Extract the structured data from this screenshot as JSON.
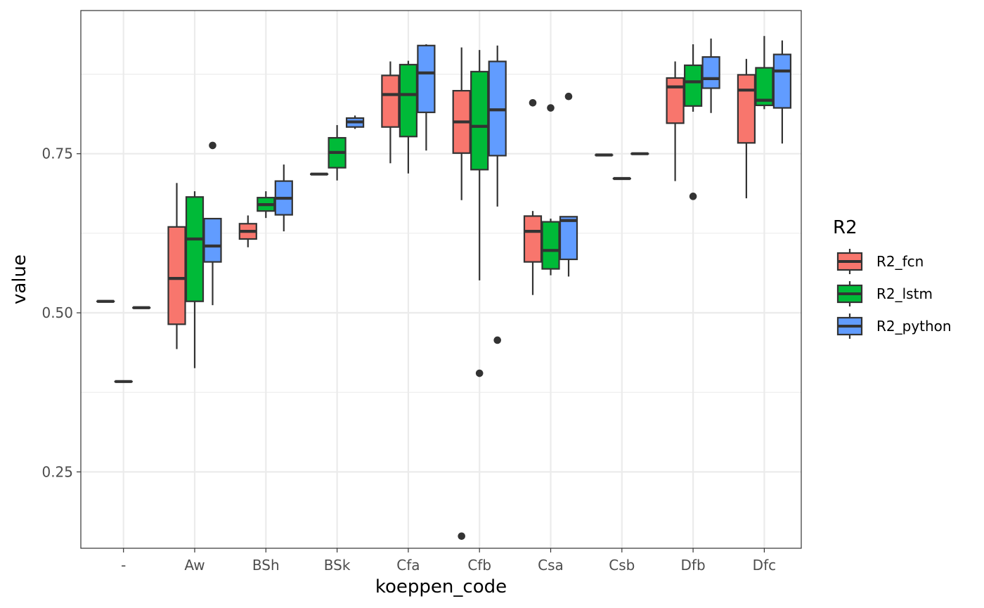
{
  "chart_data": {
    "type": "boxplot",
    "xlabel": "koeppen_code",
    "ylabel": "value",
    "ylim": [
      0.13,
      0.975
    ],
    "y_ticks": [
      0.25,
      0.5,
      0.75
    ],
    "y_tick_labels": [
      "0.25",
      "0.50",
      "0.75"
    ],
    "grid": true,
    "legend": {
      "title": "R2",
      "placement": "right"
    },
    "categories": [
      "-",
      "Aw",
      "BSh",
      "BSk",
      "Cfa",
      "Cfb",
      "Csa",
      "Csb",
      "Dfb",
      "Dfc"
    ],
    "series": [
      {
        "name": "R2_fcn",
        "color": "#F8766D",
        "boxes": [
          {
            "category": "-",
            "min": 0.518,
            "q1": 0.518,
            "median": 0.518,
            "q3": 0.518,
            "max": 0.518,
            "outliers": []
          },
          {
            "category": "Aw",
            "min": 0.443,
            "q1": 0.482,
            "median": 0.554,
            "q3": 0.635,
            "max": 0.704,
            "outliers": []
          },
          {
            "category": "BSh",
            "min": 0.603,
            "q1": 0.616,
            "median": 0.628,
            "q3": 0.64,
            "max": 0.653,
            "outliers": []
          },
          {
            "category": "BSk",
            "min": 0.718,
            "q1": 0.718,
            "median": 0.718,
            "q3": 0.718,
            "max": 0.718,
            "outliers": []
          },
          {
            "category": "Cfa",
            "min": 0.735,
            "q1": 0.792,
            "median": 0.843,
            "q3": 0.873,
            "max": 0.895,
            "outliers": []
          },
          {
            "category": "Cfb",
            "min": 0.677,
            "q1": 0.751,
            "median": 0.8,
            "q3": 0.849,
            "max": 0.917,
            "outliers": [
              0.149
            ]
          },
          {
            "category": "Csa",
            "min": 0.528,
            "q1": 0.58,
            "median": 0.628,
            "q3": 0.652,
            "max": 0.66,
            "outliers": [
              0.83
            ]
          },
          {
            "category": "Csb",
            "min": 0.748,
            "q1": 0.748,
            "median": 0.748,
            "q3": 0.748,
            "max": 0.748,
            "outliers": []
          },
          {
            "category": "Dfb",
            "min": 0.707,
            "q1": 0.798,
            "median": 0.855,
            "q3": 0.869,
            "max": 0.895,
            "outliers": []
          },
          {
            "category": "Dfc",
            "min": 0.68,
            "q1": 0.767,
            "median": 0.85,
            "q3": 0.874,
            "max": 0.899,
            "outliers": []
          }
        ]
      },
      {
        "name": "R2_lstm",
        "color": "#00BA38",
        "boxes": [
          {
            "category": "-",
            "min": 0.392,
            "q1": 0.392,
            "median": 0.392,
            "q3": 0.392,
            "max": 0.392,
            "outliers": []
          },
          {
            "category": "Aw",
            "min": 0.413,
            "q1": 0.518,
            "median": 0.616,
            "q3": 0.682,
            "max": 0.691,
            "outliers": []
          },
          {
            "category": "BSh",
            "min": 0.649,
            "q1": 0.66,
            "median": 0.67,
            "q3": 0.681,
            "max": 0.691,
            "outliers": []
          },
          {
            "category": "BSk",
            "min": 0.708,
            "q1": 0.728,
            "median": 0.752,
            "q3": 0.775,
            "max": 0.795,
            "outliers": []
          },
          {
            "category": "Cfa",
            "min": 0.719,
            "q1": 0.777,
            "median": 0.843,
            "q3": 0.89,
            "max": 0.896,
            "outliers": []
          },
          {
            "category": "Cfb",
            "min": 0.551,
            "q1": 0.725,
            "median": 0.793,
            "q3": 0.879,
            "max": 0.913,
            "outliers": [
              0.405
            ]
          },
          {
            "category": "Csa",
            "min": 0.559,
            "q1": 0.569,
            "median": 0.598,
            "q3": 0.643,
            "max": 0.648,
            "outliers": [
              0.822
            ]
          },
          {
            "category": "Csb",
            "min": 0.711,
            "q1": 0.711,
            "median": 0.711,
            "q3": 0.711,
            "max": 0.711,
            "outliers": []
          },
          {
            "category": "Dfb",
            "min": 0.816,
            "q1": 0.825,
            "median": 0.863,
            "q3": 0.889,
            "max": 0.922,
            "outliers": [
              0.683
            ]
          },
          {
            "category": "Dfc",
            "min": 0.82,
            "q1": 0.826,
            "median": 0.834,
            "q3": 0.885,
            "max": 0.935,
            "outliers": []
          }
        ]
      },
      {
        "name": "R2_python",
        "color": "#619CFF",
        "boxes": [
          {
            "category": "-",
            "min": 0.508,
            "q1": 0.508,
            "median": 0.508,
            "q3": 0.508,
            "max": 0.508,
            "outliers": []
          },
          {
            "category": "Aw",
            "min": 0.512,
            "q1": 0.58,
            "median": 0.605,
            "q3": 0.648,
            "max": 0.648,
            "outliers": [
              0.763
            ]
          },
          {
            "category": "BSh",
            "min": 0.628,
            "q1": 0.654,
            "median": 0.68,
            "q3": 0.707,
            "max": 0.733,
            "outliers": []
          },
          {
            "category": "BSk",
            "min": 0.789,
            "q1": 0.792,
            "median": 0.8,
            "q3": 0.806,
            "max": 0.81,
            "outliers": []
          },
          {
            "category": "Cfa",
            "min": 0.755,
            "q1": 0.815,
            "median": 0.877,
            "q3": 0.92,
            "max": 0.922,
            "outliers": []
          },
          {
            "category": "Cfb",
            "min": 0.667,
            "q1": 0.747,
            "median": 0.819,
            "q3": 0.895,
            "max": 0.92,
            "outliers": [
              0.457
            ]
          },
          {
            "category": "Csa",
            "min": 0.557,
            "q1": 0.584,
            "median": 0.645,
            "q3": 0.651,
            "max": 0.651,
            "outliers": [
              0.84
            ]
          },
          {
            "category": "Csb",
            "min": 0.75,
            "q1": 0.75,
            "median": 0.75,
            "q3": 0.75,
            "max": 0.75,
            "outliers": []
          },
          {
            "category": "Dfb",
            "min": 0.814,
            "q1": 0.853,
            "median": 0.868,
            "q3": 0.902,
            "max": 0.931,
            "outliers": []
          },
          {
            "category": "Dfc",
            "min": 0.766,
            "q1": 0.822,
            "median": 0.88,
            "q3": 0.906,
            "max": 0.928,
            "outliers": []
          }
        ]
      }
    ]
  }
}
